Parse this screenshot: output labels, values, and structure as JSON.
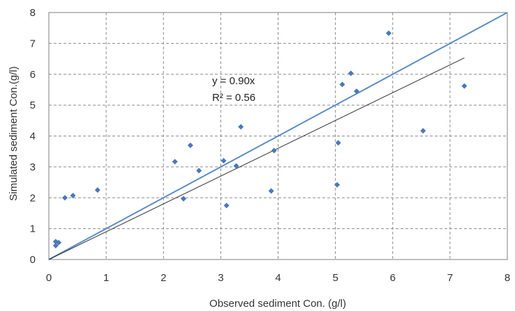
{
  "chart_data": {
    "type": "scatter",
    "title": "",
    "xlabel": "Observed sediment Con. (g/l)",
    "ylabel": "Simulated sediment Con.(g/l)",
    "xlim": [
      0,
      8
    ],
    "ylim": [
      0,
      8
    ],
    "x_ticks": [
      "0",
      "1",
      "2",
      "3",
      "4",
      "5",
      "6",
      "7",
      "8"
    ],
    "y_ticks": [
      "0",
      "1",
      "2",
      "3",
      "4",
      "5",
      "6",
      "7",
      "8"
    ],
    "grid": true,
    "legend": "none",
    "series": [
      {
        "points": [
          [
            0.12,
            0.58
          ],
          [
            0.17,
            0.55
          ],
          [
            0.12,
            0.45
          ],
          [
            0.28,
            2.0
          ],
          [
            0.42,
            2.07
          ],
          [
            0.85,
            2.25
          ],
          [
            2.2,
            3.17
          ],
          [
            2.35,
            1.97
          ],
          [
            2.47,
            3.7
          ],
          [
            2.62,
            2.88
          ],
          [
            3.05,
            3.2
          ],
          [
            3.1,
            1.75
          ],
          [
            3.27,
            3.03
          ],
          [
            3.35,
            4.3
          ],
          [
            3.88,
            2.22
          ],
          [
            3.93,
            3.53
          ],
          [
            5.03,
            2.42
          ],
          [
            5.05,
            3.78
          ],
          [
            5.12,
            5.67
          ],
          [
            5.27,
            6.03
          ],
          [
            5.37,
            5.45
          ],
          [
            5.93,
            7.33
          ],
          [
            6.53,
            4.17
          ],
          [
            7.25,
            5.62
          ]
        ],
        "color": "#4a78b8",
        "marker": "diamond"
      }
    ],
    "lines": [
      {
        "kind": "one-to-one",
        "from": [
          0,
          0
        ],
        "to": [
          8,
          8
        ],
        "color": "#5b8cc4"
      },
      {
        "kind": "trendline",
        "from": [
          0,
          0
        ],
        "to": [
          7.25,
          6.53
        ],
        "color": "#333333"
      }
    ],
    "annotations": [
      "y = 0.90x",
      "R² = 0.56"
    ]
  }
}
